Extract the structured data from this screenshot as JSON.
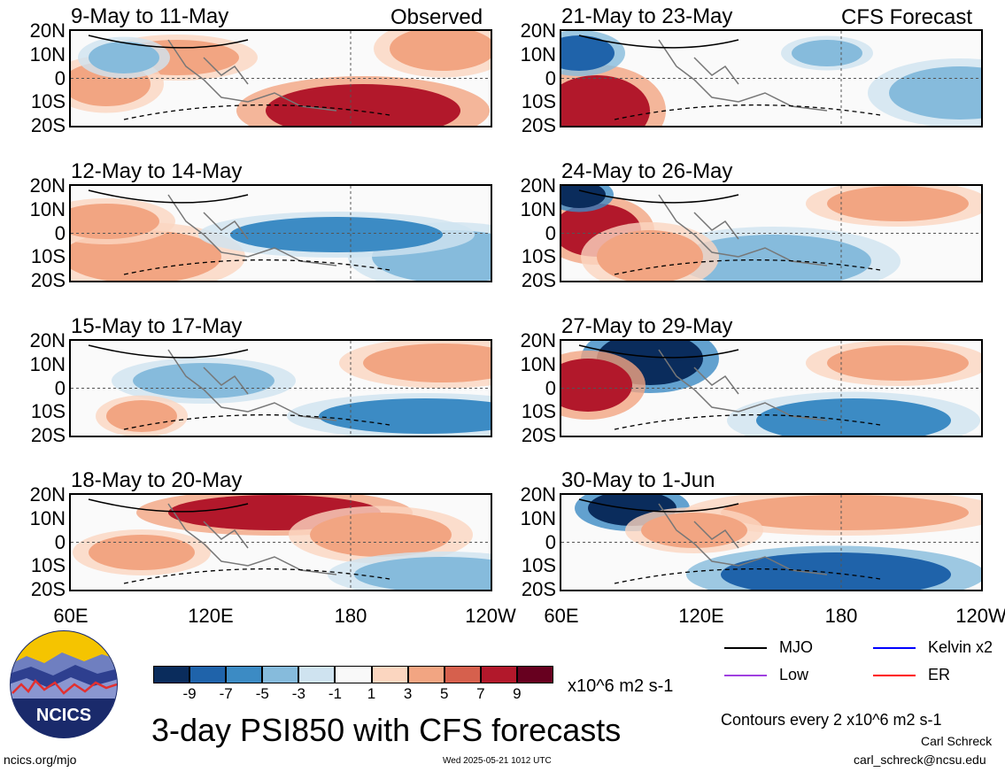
{
  "header": {
    "left_label": "Observed",
    "right_label": "CFS Forecast"
  },
  "panels": [
    {
      "id": "p1",
      "title": "9-May to 11-May",
      "kind": "observed"
    },
    {
      "id": "p2",
      "title": "12-May to 14-May",
      "kind": "observed"
    },
    {
      "id": "p3",
      "title": "15-May to 17-May",
      "kind": "observed"
    },
    {
      "id": "p4",
      "title": "18-May to 20-May",
      "kind": "observed"
    },
    {
      "id": "p5",
      "title": "21-May to 23-May",
      "kind": "forecast"
    },
    {
      "id": "p6",
      "title": "24-May to 26-May",
      "kind": "forecast"
    },
    {
      "id": "p7",
      "title": "27-May to 29-May",
      "kind": "forecast"
    },
    {
      "id": "p8",
      "title": "30-May to 1-Jun",
      "kind": "forecast"
    }
  ],
  "axes": {
    "lat_labels": [
      "20N",
      "10N",
      "0",
      "10S",
      "20S"
    ],
    "lon_labels": [
      "60E",
      "120E",
      "180",
      "120W"
    ]
  },
  "colorbar": {
    "labels": [
      "-9",
      "-7",
      "-5",
      "-3",
      "-1",
      "1",
      "3",
      "5",
      "7",
      "9"
    ],
    "colors": [
      "#0a2c5c",
      "#1f63aa",
      "#3c8bc4",
      "#86bbdc",
      "#cfe3f0",
      "#f9f9f9",
      "#fbd6c0",
      "#f2a582",
      "#d6604d",
      "#b2182b",
      "#67001f"
    ],
    "units": "x10^6 m2 s-1"
  },
  "legend": {
    "items": [
      {
        "label": "MJO",
        "color": "#000000"
      },
      {
        "label": "Kelvin x2",
        "color": "#0000ff"
      },
      {
        "label": "Low",
        "color": "#a040e0"
      },
      {
        "label": "ER",
        "color": "#ff0000"
      }
    ],
    "contour_note": "Contours every 2 x10^6 m2 s-1"
  },
  "footer": {
    "main_title": "3-day PSI850 with CFS forecasts",
    "logo_text": "NCICS",
    "url": "ncics.org/mjo",
    "timestamp": "Wed 2025-05-21 1012 UTC",
    "author": "Carl Schreck",
    "email": "carl_schreck@ncsu.edu"
  }
}
